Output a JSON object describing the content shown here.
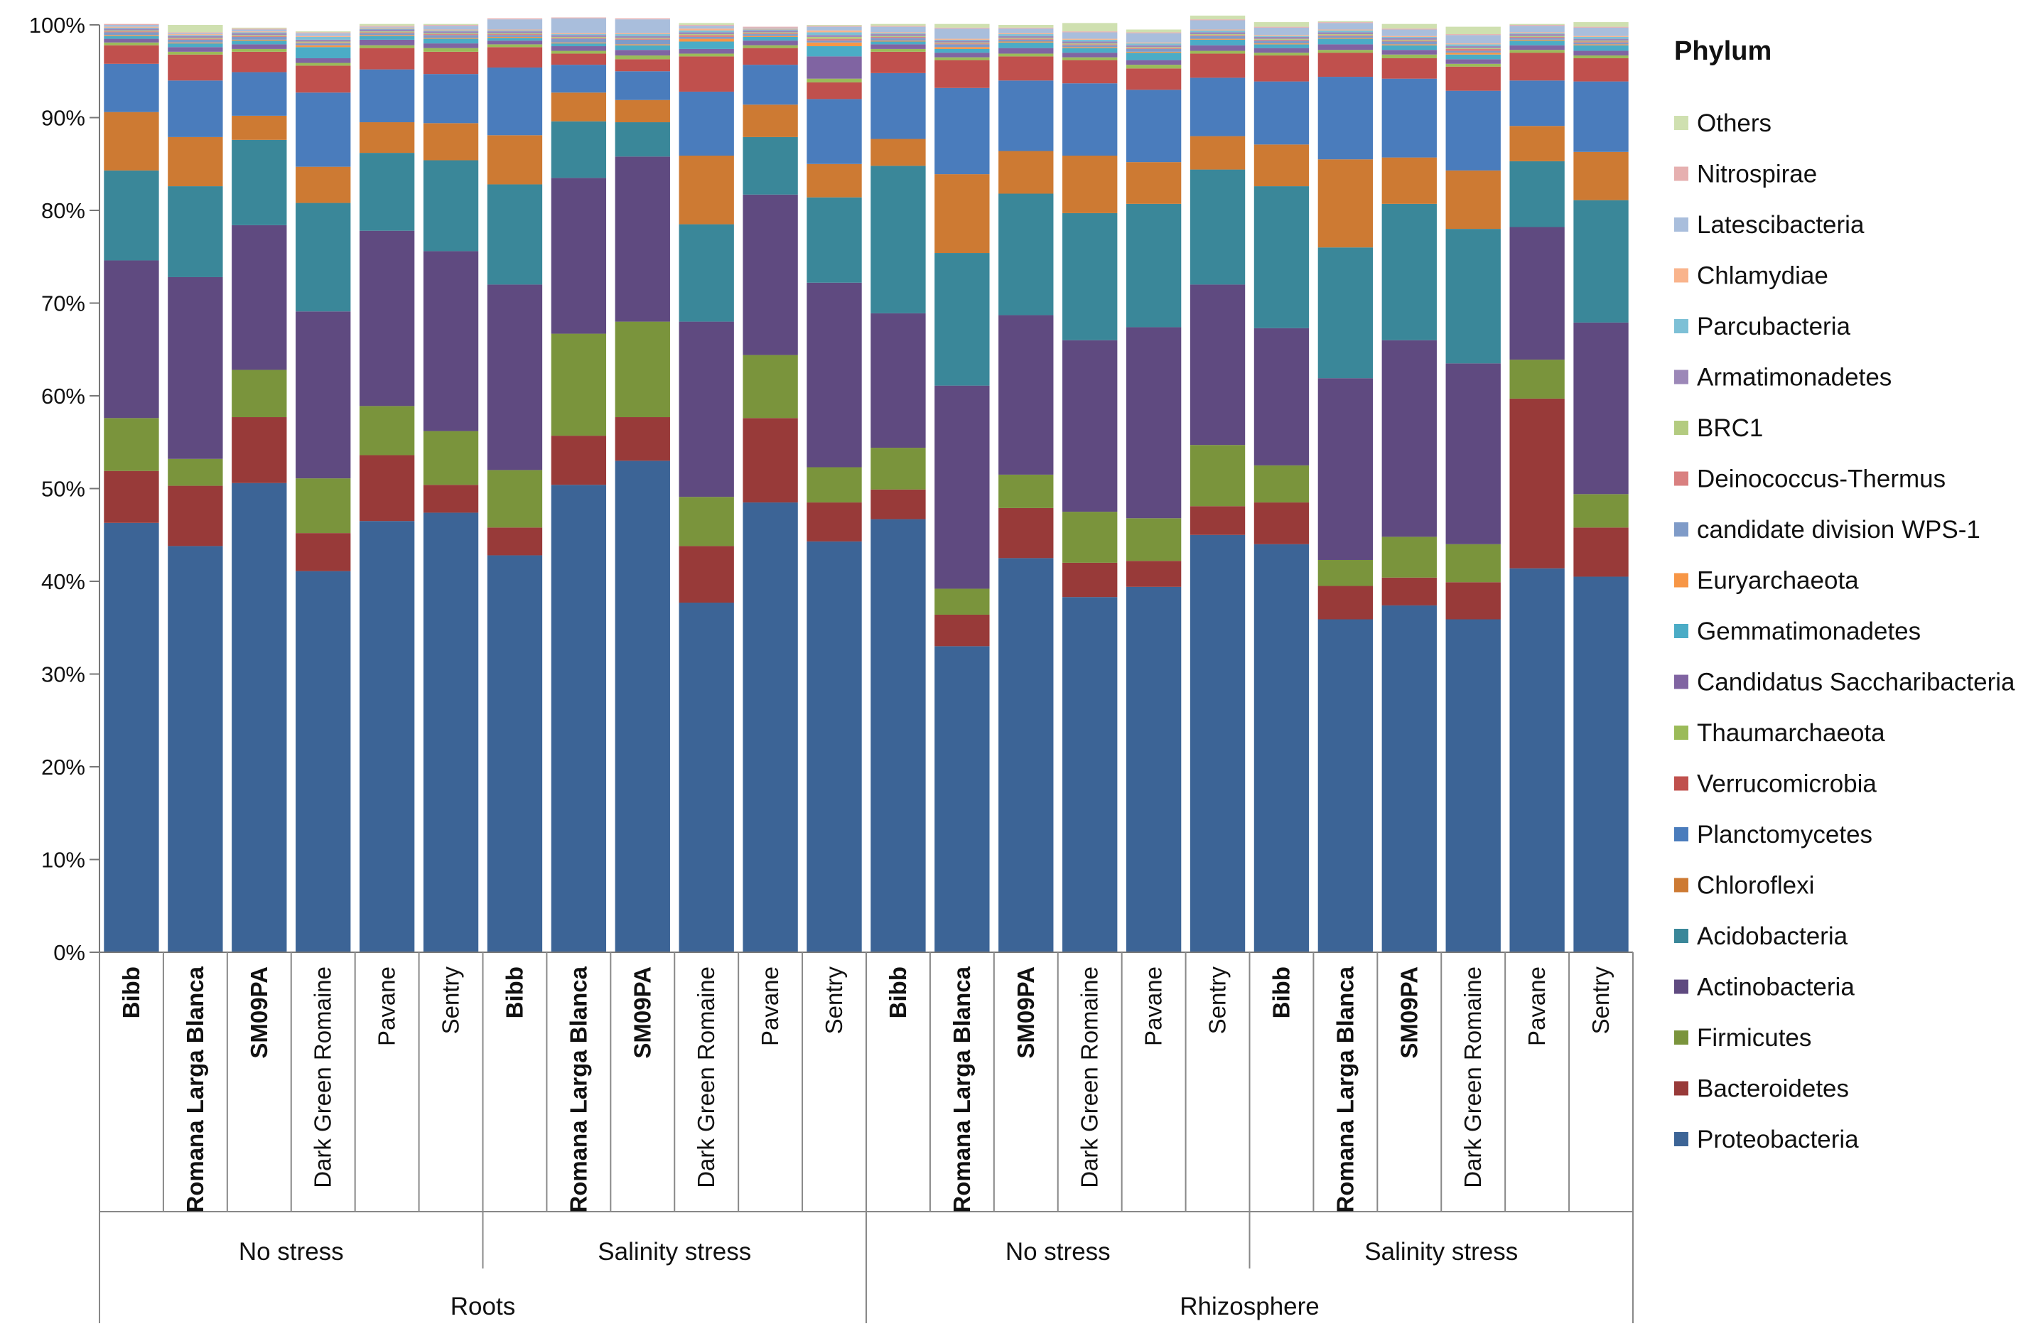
{
  "chart_data": {
    "type": "bar",
    "stacked": true,
    "normalized": true,
    "ylim": [
      0,
      100
    ],
    "yticks": [
      "0%",
      "10%",
      "20%",
      "30%",
      "40%",
      "50%",
      "60%",
      "70%",
      "80%",
      "90%",
      "100%"
    ],
    "legend_title": "Phylum",
    "legend_position": "right",
    "categories": [
      {
        "label": "Bibb",
        "bold": true
      },
      {
        "label": "Romana Larga Blanca",
        "bold": true
      },
      {
        "label": "SM09PA",
        "bold": true
      },
      {
        "label": "Dark Green Romaine",
        "bold": false
      },
      {
        "label": "Pavane",
        "bold": false
      },
      {
        "label": "Sentry",
        "bold": false
      },
      {
        "label": "Bibb",
        "bold": true
      },
      {
        "label": "Romana Larga Blanca",
        "bold": true
      },
      {
        "label": "SM09PA",
        "bold": true
      },
      {
        "label": "Dark Green Romaine",
        "bold": false
      },
      {
        "label": "Pavane",
        "bold": false
      },
      {
        "label": "Sentry",
        "bold": false
      },
      {
        "label": "Bibb",
        "bold": true
      },
      {
        "label": "Romana Larga Blanca",
        "bold": true
      },
      {
        "label": "SM09PA",
        "bold": true
      },
      {
        "label": "Dark Green Romaine",
        "bold": false
      },
      {
        "label": "Pavane",
        "bold": false
      },
      {
        "label": "Sentry",
        "bold": false
      },
      {
        "label": "Bibb",
        "bold": true
      },
      {
        "label": "Romana Larga Blanca",
        "bold": true
      },
      {
        "label": "SM09PA",
        "bold": true
      },
      {
        "label": "Dark Green Romaine",
        "bold": false
      },
      {
        "label": "Pavane",
        "bold": false
      },
      {
        "label": "Sentry",
        "bold": false
      }
    ],
    "groups_level1": [
      {
        "label": "No stress",
        "start": 0,
        "end": 5
      },
      {
        "label": "Salinity stress",
        "start": 6,
        "end": 11
      },
      {
        "label": "No stress",
        "start": 12,
        "end": 17
      },
      {
        "label": "Salinity stress",
        "start": 18,
        "end": 23
      }
    ],
    "groups_level2": [
      {
        "label": "Roots",
        "start": 0,
        "end": 11
      },
      {
        "label": "Rhizosphere",
        "start": 12,
        "end": 23
      }
    ],
    "series": [
      {
        "name": "Proteobacteria",
        "color": "#3c6496",
        "values": [
          46.3,
          43.8,
          50.6,
          41.1,
          46.5,
          47.4,
          42.8,
          50.4,
          53.0,
          37.7,
          48.5,
          44.3,
          46.7,
          33.0,
          42.5,
          38.3,
          39.4,
          45.0,
          44.0,
          35.9,
          37.4,
          35.9,
          41.4,
          40.5
        ]
      },
      {
        "name": "Bacteroidetes",
        "color": "#983a39",
        "values": [
          5.6,
          6.5,
          7.1,
          4.1,
          7.1,
          3.0,
          3.0,
          5.3,
          4.7,
          6.1,
          9.1,
          4.2,
          3.2,
          3.4,
          5.4,
          3.7,
          2.8,
          3.1,
          4.5,
          3.6,
          3.0,
          4.0,
          18.3,
          5.3
        ]
      },
      {
        "name": "Firmicutes",
        "color": "#7a943c",
        "values": [
          5.7,
          2.9,
          5.1,
          5.9,
          5.3,
          5.8,
          6.2,
          11.0,
          10.3,
          5.3,
          6.8,
          3.8,
          4.5,
          2.8,
          3.6,
          5.5,
          4.6,
          6.6,
          4.0,
          2.8,
          4.4,
          4.1,
          4.2,
          3.6
        ]
      },
      {
        "name": "Actinobacteria",
        "color": "#5f4a80",
        "values": [
          17.0,
          19.6,
          15.6,
          18.0,
          18.9,
          19.4,
          20.0,
          16.8,
          17.8,
          18.9,
          17.3,
          19.9,
          14.5,
          21.9,
          17.2,
          18.5,
          20.6,
          17.3,
          14.8,
          19.6,
          21.2,
          19.5,
          14.3,
          18.5
        ]
      },
      {
        "name": "Acidobacteria",
        "color": "#3a8799",
        "values": [
          9.7,
          9.8,
          9.2,
          11.7,
          8.4,
          9.8,
          10.8,
          6.1,
          3.7,
          10.5,
          6.2,
          9.2,
          15.9,
          14.3,
          13.1,
          13.7,
          13.3,
          12.4,
          15.3,
          14.1,
          14.7,
          14.5,
          7.1,
          13.2
        ]
      },
      {
        "name": "Chloroflexi",
        "color": "#cd7a33",
        "values": [
          6.3,
          5.3,
          2.6,
          3.9,
          3.3,
          4.0,
          5.3,
          3.1,
          2.4,
          7.4,
          3.5,
          3.6,
          2.9,
          8.5,
          4.6,
          6.2,
          4.5,
          3.6,
          4.5,
          9.5,
          5.0,
          6.3,
          3.8,
          5.2
        ]
      },
      {
        "name": "Planctomycetes",
        "color": "#4a7cbc",
        "values": [
          5.2,
          6.1,
          4.7,
          8.0,
          5.7,
          5.3,
          7.3,
          3.0,
          3.1,
          6.9,
          4.3,
          7.0,
          7.1,
          9.3,
          7.6,
          7.8,
          7.8,
          6.3,
          6.8,
          8.9,
          8.5,
          8.6,
          4.9,
          7.6
        ]
      },
      {
        "name": "Verrucomicrobia",
        "color": "#c0504d",
        "values": [
          2.0,
          2.8,
          2.2,
          2.9,
          2.3,
          2.4,
          2.2,
          1.2,
          1.3,
          3.8,
          1.8,
          1.8,
          2.3,
          3.0,
          2.6,
          2.5,
          2.3,
          2.6,
          2.8,
          2.6,
          2.2,
          2.6,
          3.0,
          2.5
        ]
      },
      {
        "name": "Thaumarchaeota",
        "color": "#9bbb59",
        "values": [
          0.3,
          0.3,
          0.3,
          0.3,
          0.3,
          0.4,
          0.3,
          0.3,
          0.4,
          0.3,
          0.3,
          0.4,
          0.3,
          0.3,
          0.3,
          0.3,
          0.4,
          0.3,
          0.3,
          0.3,
          0.4,
          0.3,
          0.3,
          0.3
        ]
      },
      {
        "name": "Candidatus Saccharibacteria",
        "color": "#8064a2",
        "values": [
          0.4,
          0.5,
          0.5,
          0.5,
          0.6,
          0.5,
          0.4,
          0.5,
          0.6,
          0.5,
          0.5,
          2.4,
          0.5,
          0.5,
          0.6,
          0.5,
          0.5,
          0.6,
          0.5,
          0.6,
          0.5,
          0.5,
          0.5,
          0.5
        ]
      },
      {
        "name": "Gemmatimonadetes",
        "color": "#4bacc6",
        "values": [
          0.3,
          0.4,
          0.4,
          1.2,
          0.4,
          0.5,
          0.3,
          0.3,
          0.5,
          0.8,
          0.4,
          1.1,
          0.3,
          0.4,
          0.6,
          0.5,
          0.8,
          0.6,
          0.4,
          0.6,
          0.5,
          0.5,
          0.5,
          0.6
        ]
      },
      {
        "name": "Euryarchaeota",
        "color": "#f79646",
        "values": [
          0.1,
          0.1,
          0.1,
          0.2,
          0.1,
          0.1,
          0.1,
          0.1,
          0.1,
          0.3,
          0.1,
          0.4,
          0.1,
          0.2,
          0.1,
          0.1,
          0.1,
          0.1,
          0.1,
          0.1,
          0.1,
          0.2,
          0.1,
          0.1
        ]
      },
      {
        "name": "candidate division WPS-1",
        "color": "#7f9bc8",
        "values": [
          0.3,
          0.3,
          0.3,
          0.2,
          0.2,
          0.3,
          0.2,
          0.4,
          0.5,
          0.2,
          0.2,
          0.2,
          0.3,
          0.3,
          0.2,
          0.2,
          0.3,
          0.3,
          0.3,
          0.2,
          0.3,
          0.2,
          0.2,
          0.2
        ]
      },
      {
        "name": "Deinococcus-Thermus",
        "color": "#d98080",
        "values": [
          0.1,
          0.1,
          0.1,
          0.1,
          0.1,
          0.1,
          0.1,
          0.1,
          0.1,
          0.2,
          0.1,
          0.2,
          0.1,
          0.1,
          0.1,
          0.1,
          0.1,
          0.1,
          0.1,
          0.1,
          0.1,
          0.2,
          0.1,
          0.1
        ]
      },
      {
        "name": "BRC1",
        "color": "#b3cb80",
        "values": [
          0.1,
          0.1,
          0.1,
          0.1,
          0.1,
          0.1,
          0.1,
          0.1,
          0.1,
          0.1,
          0.1,
          0.2,
          0.1,
          0.1,
          0.1,
          0.1,
          0.1,
          0.1,
          0.1,
          0.1,
          0.1,
          0.1,
          0.1,
          0.1
        ]
      },
      {
        "name": "Armatimonadetes",
        "color": "#9c88b8",
        "values": [
          0.2,
          0.2,
          0.2,
          0.2,
          0.2,
          0.2,
          0.2,
          0.2,
          0.2,
          0.2,
          0.2,
          0.2,
          0.2,
          0.2,
          0.2,
          0.2,
          0.2,
          0.2,
          0.2,
          0.2,
          0.2,
          0.2,
          0.2,
          0.2
        ]
      },
      {
        "name": "Parcubacteria",
        "color": "#7dc0d6",
        "values": [
          0.1,
          0.1,
          0.1,
          0.3,
          0.1,
          0.1,
          0.1,
          0.1,
          0.2,
          0.2,
          0.1,
          0.3,
          0.1,
          0.1,
          0.2,
          0.2,
          0.2,
          0.2,
          0.1,
          0.2,
          0.1,
          0.2,
          0.1,
          0.2
        ]
      },
      {
        "name": "Chlamydiae",
        "color": "#f9b48c",
        "values": [
          0.1,
          0.1,
          0.1,
          0.1,
          0.1,
          0.1,
          0.1,
          0.1,
          0.1,
          0.2,
          0.1,
          0.2,
          0.1,
          0.1,
          0.1,
          0.1,
          0.1,
          0.1,
          0.1,
          0.1,
          0.1,
          0.1,
          0.1,
          0.1
        ]
      },
      {
        "name": "Latescibacteria",
        "color": "#a9bedc",
        "values": [
          0.2,
          0.1,
          0.2,
          0.3,
          0.1,
          0.4,
          1.1,
          1.6,
          1.5,
          0.3,
          0.1,
          0.4,
          0.6,
          1.1,
          0.5,
          0.7,
          1.0,
          1.0,
          0.8,
          0.7,
          0.7,
          0.9,
          0.7,
          0.9
        ]
      },
      {
        "name": "Nitrospirae",
        "color": "#e6b0b0",
        "values": [
          0.1,
          0.1,
          0.1,
          0.1,
          0.1,
          0.1,
          0.1,
          0.1,
          0.1,
          0.1,
          0.1,
          0.1,
          0.1,
          0.1,
          0.1,
          0.1,
          0.1,
          0.1,
          0.1,
          0.1,
          0.1,
          0.1,
          0.1,
          0.1
        ]
      },
      {
        "name": "Others",
        "color": "#cfe0b0",
        "values": [
          0.0,
          0.8,
          0.1,
          0.1,
          0.2,
          0.1,
          0.0,
          0.0,
          0.0,
          0.2,
          0.0,
          0.1,
          0.2,
          0.4,
          0.3,
          0.9,
          0.3,
          0.4,
          0.5,
          0.1,
          0.5,
          0.8,
          0.1,
          0.5
        ]
      }
    ]
  }
}
